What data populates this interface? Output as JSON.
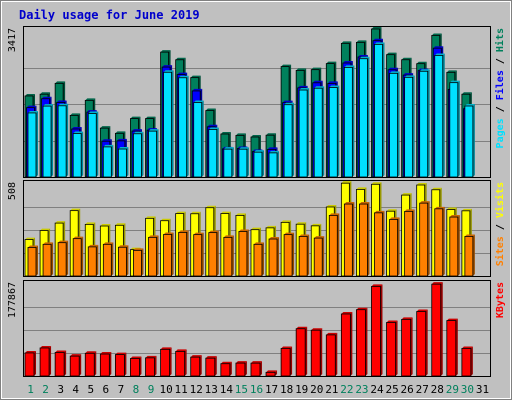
{
  "colors": {
    "hits": "#00805c",
    "files": "#0000ff",
    "pages": "#00e0ff",
    "visits": "#ffff00",
    "sites": "#ff8000",
    "kbytes": "#ff0000",
    "title": "#0000cc",
    "weekday_tick": "#000000",
    "weekend_tick": "#00805c"
  },
  "chart_data": {
    "type": "bar",
    "title": "Daily usage for June 2019",
    "categories": [
      "1",
      "2",
      "3",
      "4",
      "5",
      "6",
      "7",
      "8",
      "9",
      "10",
      "11",
      "12",
      "13",
      "14",
      "15",
      "16",
      "17",
      "18",
      "19",
      "20",
      "21",
      "22",
      "23",
      "24",
      "25",
      "26",
      "27",
      "28",
      "29",
      "30",
      "31"
    ],
    "weekend_days": [
      "1",
      "2",
      "8",
      "9",
      "15",
      "16",
      "22",
      "23",
      "29",
      "30"
    ],
    "panels": [
      {
        "name": "hits-files-pages",
        "ymax": 3417,
        "ymax_label": "3417",
        "right_label_parts": [
          {
            "text": "Pages",
            "color": "#00e0ff"
          },
          {
            "text": " / ",
            "color": "#000000"
          },
          {
            "text": "Files",
            "color": "#0000ff"
          },
          {
            "text": " / ",
            "color": "#000000"
          },
          {
            "text": "Hits",
            "color": "#00805c"
          }
        ],
        "series": [
          {
            "name": "Hits",
            "color": "#00805c",
            "values": [
              1871,
              1911,
              2162,
              1422,
              1769,
              1128,
              1008,
              1349,
              1349,
              2883,
              2706,
              2294,
              1534,
              992,
              960,
              923,
              965,
              2549,
              2461,
              2478,
              2618,
              3085,
              3108,
              3417,
              2824,
              2707,
              2616,
              3268,
              2416,
              1911,
              0
            ]
          },
          {
            "name": "Files",
            "color": "#0000ff",
            "values": [
              1601,
              1807,
              1720,
              1108,
              1498,
              826,
              834,
              1060,
              1081,
              2538,
              2365,
              1987,
              1159,
              649,
              658,
              588,
              637,
              1716,
              2058,
              2175,
              2161,
              2632,
              2771,
              3147,
              2475,
              2353,
              2456,
              2974,
              2022,
              1575,
              0
            ]
          },
          {
            "name": "Pages",
            "color": "#00e0ff",
            "values": [
              1479,
              1637,
              1644,
              1004,
              1465,
              695,
              646,
              998,
              1059,
              2418,
              2291,
              1719,
              1097,
              643,
              642,
              573,
              557,
              1669,
              2008,
              2050,
              2065,
              2530,
              2731,
              3062,
              2393,
              2301,
              2441,
              2805,
              2178,
              1639,
              0
            ]
          }
        ]
      },
      {
        "name": "visits-sites",
        "ymax": 508,
        "ymax_label": "508",
        "right_label_parts": [
          {
            "text": "Sites",
            "color": "#ff8000"
          },
          {
            "text": " / ",
            "color": "#000000"
          },
          {
            "text": "Visits",
            "color": "#ffff00"
          }
        ],
        "series": [
          {
            "name": "Visits",
            "color": "#ffff00",
            "values": [
              199,
              248,
              289,
              357,
              282,
              273,
              277,
              144,
              315,
              302,
              341,
              340,
              373,
              341,
              331,
              253,
              263,
              293,
              283,
              274,
              377,
              507,
              473,
              501,
              354,
              442,
              497,
              471,
              363,
              356,
              0
            ]
          },
          {
            "name": "Sites",
            "color": "#ff8000",
            "values": [
              156,
              173,
              182,
              204,
              159,
              173,
              157,
              140,
              211,
              227,
              238,
              226,
              237,
              211,
              243,
              173,
              202,
              226,
              216,
              207,
              331,
              393,
              393,
              345,
              309,
              353,
              398,
              367,
              322,
              216,
              0
            ]
          }
        ]
      },
      {
        "name": "kbytes",
        "ymax": 177867,
        "ymax_label": "177867",
        "right_label_parts": [
          {
            "text": "KBytes",
            "color": "#ff0000"
          }
        ],
        "series": [
          {
            "name": "KBytes",
            "color": "#ff0000",
            "values": [
              44100,
              53600,
              45000,
              38000,
              43400,
              42000,
              41000,
              33500,
              34700,
              51000,
              47000,
              36100,
              34100,
              23500,
              24700,
              24600,
              7000,
              52700,
              90400,
              87600,
              78600,
              118600,
              126800,
              171300,
              102400,
              108300,
              123300,
              175600,
              106000,
              52700,
              0
            ]
          }
        ]
      }
    ]
  }
}
